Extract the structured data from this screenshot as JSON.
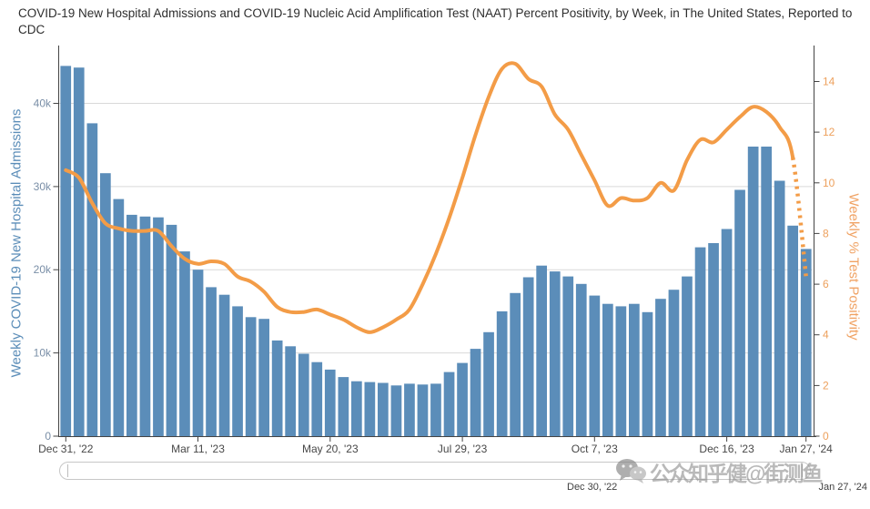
{
  "title": "COVID-19 New Hospital Admissions and COVID-19 Nucleic Acid Amplification Test (NAAT) Percent Positivity, by Week, in The United States, Reported to CDC",
  "colors": {
    "bar": "#5b8db9",
    "line": "#f39c47",
    "grid": "#d9d9d9",
    "axis_line": "#444444",
    "left_tick_text": "#7a8fa7",
    "right_tick_text": "#eda05c",
    "x_tick_text": "#474747"
  },
  "left_axis": {
    "title": "Weekly COVID-19 New Hospital Admissions",
    "ticks": [
      "0",
      "10k",
      "20k",
      "30k",
      "40k"
    ],
    "tick_values": [
      0,
      10000,
      20000,
      30000,
      40000
    ],
    "range": [
      0,
      46400
    ]
  },
  "right_axis": {
    "title": "Weekly % Test Positivity",
    "ticks": [
      "0",
      "2",
      "4",
      "6",
      "8",
      "10",
      "12",
      "14"
    ],
    "tick_values": [
      0,
      2,
      4,
      6,
      8,
      10,
      12,
      14
    ],
    "range": [
      0,
      15.24
    ]
  },
  "x_axis": {
    "tick_labels": [
      "Dec 31, '22",
      "Mar 11, '23",
      "May 20, '23",
      "Jul 29, '23",
      "Oct 7, '23",
      "Dec 16, '23",
      "Jan 27, '24"
    ],
    "tick_week_indices": [
      1,
      11,
      21,
      31,
      41,
      51,
      57
    ]
  },
  "chart_data": [
    {
      "type": "bar",
      "name": "Weekly COVID-19 New Hospital Admissions",
      "yaxis": "left",
      "x_start": "Dec 31, '22",
      "x_end": "Jan 27, '24",
      "x_step": "1 week",
      "color": "#5b8db9",
      "values": [
        44500,
        44300,
        37600,
        31600,
        28500,
        26600,
        26400,
        26300,
        25400,
        22200,
        20000,
        17900,
        17000,
        15600,
        14300,
        14100,
        11500,
        10800,
        9900,
        8900,
        8000,
        7100,
        6600,
        6500,
        6400,
        6100,
        6300,
        6200,
        6300,
        7700,
        8800,
        10500,
        12500,
        15000,
        17200,
        19100,
        20500,
        19800,
        19200,
        18300,
        16900,
        15900,
        15600,
        15900,
        14900,
        16500,
        17600,
        19200,
        22700,
        23200,
        24900,
        29600,
        34800,
        34800,
        30700,
        25300,
        22500
      ]
    },
    {
      "type": "line",
      "name": "Weekly % Test Positivity",
      "yaxis": "right",
      "smooth": true,
      "color": "#f39c47",
      "dotted_from_index": 55,
      "values": [
        10.5,
        10.2,
        9.2,
        8.4,
        8.2,
        8.1,
        8.1,
        8.1,
        7.5,
        7.0,
        6.8,
        6.9,
        6.8,
        6.3,
        6.1,
        5.7,
        5.1,
        4.9,
        4.9,
        5.0,
        4.8,
        4.6,
        4.3,
        4.1,
        4.3,
        4.6,
        5.0,
        6.0,
        7.2,
        8.6,
        10.2,
        11.9,
        13.4,
        14.5,
        14.7,
        14.1,
        13.8,
        12.7,
        12.1,
        11.1,
        10.1,
        9.1,
        9.4,
        9.3,
        9.4,
        10.0,
        9.7,
        10.9,
        11.7,
        11.6,
        12.1,
        12.6,
        13.0,
        12.8,
        12.2,
        11.0,
        6.3
      ]
    }
  ],
  "range_slider": {
    "start_label": "Dec 30, '22",
    "end_label": "Jan 27, '24"
  },
  "watermark": {
    "icon": "wechat-icon",
    "text": "公众知乎健@街测鱼"
  }
}
